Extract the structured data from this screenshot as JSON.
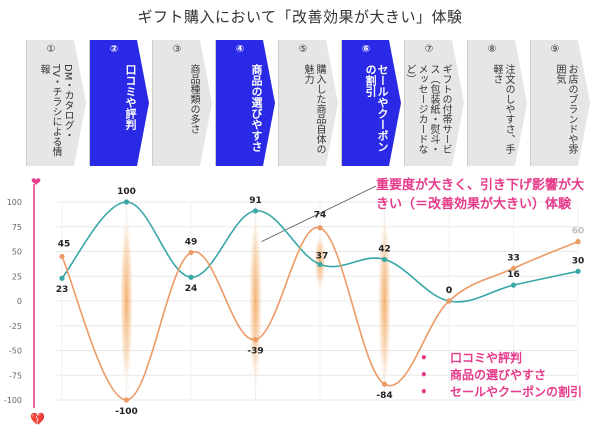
{
  "title": "ギフト購入において「改善効果が大きい」体験",
  "steps": [
    {
      "num": "①",
      "label": "DM・カタログ・TV・チラシによる情報",
      "highlight": false
    },
    {
      "num": "②",
      "label": "口コミや評判",
      "highlight": true
    },
    {
      "num": "③",
      "label": "商品種類の多さ",
      "highlight": false
    },
    {
      "num": "④",
      "label": "商品の選びやすさ",
      "highlight": true
    },
    {
      "num": "⑤",
      "label": "購入した商品自体の魅力",
      "highlight": false
    },
    {
      "num": "⑥",
      "label": "セールやクーポンの割引",
      "highlight": true
    },
    {
      "num": "⑦",
      "label": "ギフトの付帯サービス（包装紙・熨斗・メッセージカードなど）",
      "highlight": false
    },
    {
      "num": "⑧",
      "label": "注文のしやすさ、手軽さ",
      "highlight": false
    },
    {
      "num": "⑨",
      "label": "お店のブランドや雰囲気",
      "highlight": false
    }
  ],
  "annotation": "重要度が大きく、引き下げ影響が大きい（＝改善効果が大きい）体験",
  "legend": [
    "口コミや評判",
    "商品の選びやすさ",
    "セールやクーポンの割引"
  ],
  "colors": {
    "highlight": "#2a2ae6",
    "teal": "#3aa6a6",
    "orange": "#ec9a66",
    "pink": "#e63a8a",
    "arrow_gray": "#e6e6e6"
  },
  "icons": {
    "top": "heart-icon",
    "bottom": "broken-heart-icon"
  },
  "chart_data": {
    "type": "line",
    "categories": [
      "①",
      "②",
      "③",
      "④",
      "⑤",
      "⑥",
      "⑦",
      "⑧",
      "⑨"
    ],
    "series": [
      {
        "color": "#3aa6a6",
        "values": [
          23,
          100,
          24,
          91,
          37,
          42,
          0,
          16,
          30
        ]
      },
      {
        "color": "#ec9a66",
        "values": [
          45,
          -100,
          49,
          -39,
          74,
          -84,
          0,
          33,
          60
        ]
      }
    ],
    "ylim": [
      -100,
      100
    ],
    "yticks": [
      100,
      75,
      50,
      25,
      0,
      -25,
      -50,
      -75,
      -100
    ],
    "highlight_categories": [
      "②",
      "④",
      "⑥"
    ],
    "grid": true
  }
}
